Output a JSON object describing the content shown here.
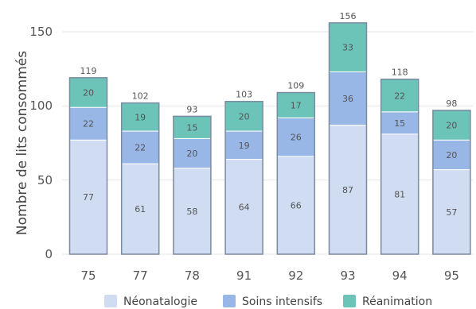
{
  "chart_data": {
    "type": "bar",
    "stacked": true,
    "categories": [
      "75",
      "77",
      "78",
      "91",
      "92",
      "93",
      "94",
      "95"
    ],
    "series": [
      {
        "name": "Néonatalogie",
        "values": [
          77,
          61,
          58,
          64,
          66,
          87,
          81,
          57
        ],
        "color": "#cfdcf1"
      },
      {
        "name": "Soins intensifs",
        "values": [
          22,
          22,
          20,
          19,
          26,
          36,
          15,
          20
        ],
        "color": "#98b6e6"
      },
      {
        "name": "Réanimation",
        "values": [
          20,
          19,
          15,
          20,
          17,
          33,
          22,
          20
        ],
        "color": "#6cc3b8"
      }
    ],
    "totals": [
      "119",
      "102",
      "93",
      "103",
      "109",
      "156",
      "118",
      "98"
    ],
    "title": "",
    "xlabel": "",
    "ylabel": "Nombre de lits consommés",
    "ylim": [
      0,
      160
    ],
    "yticks": [
      "0",
      "50",
      "100",
      "150"
    ],
    "grid": true,
    "legend_position": "bottom"
  }
}
